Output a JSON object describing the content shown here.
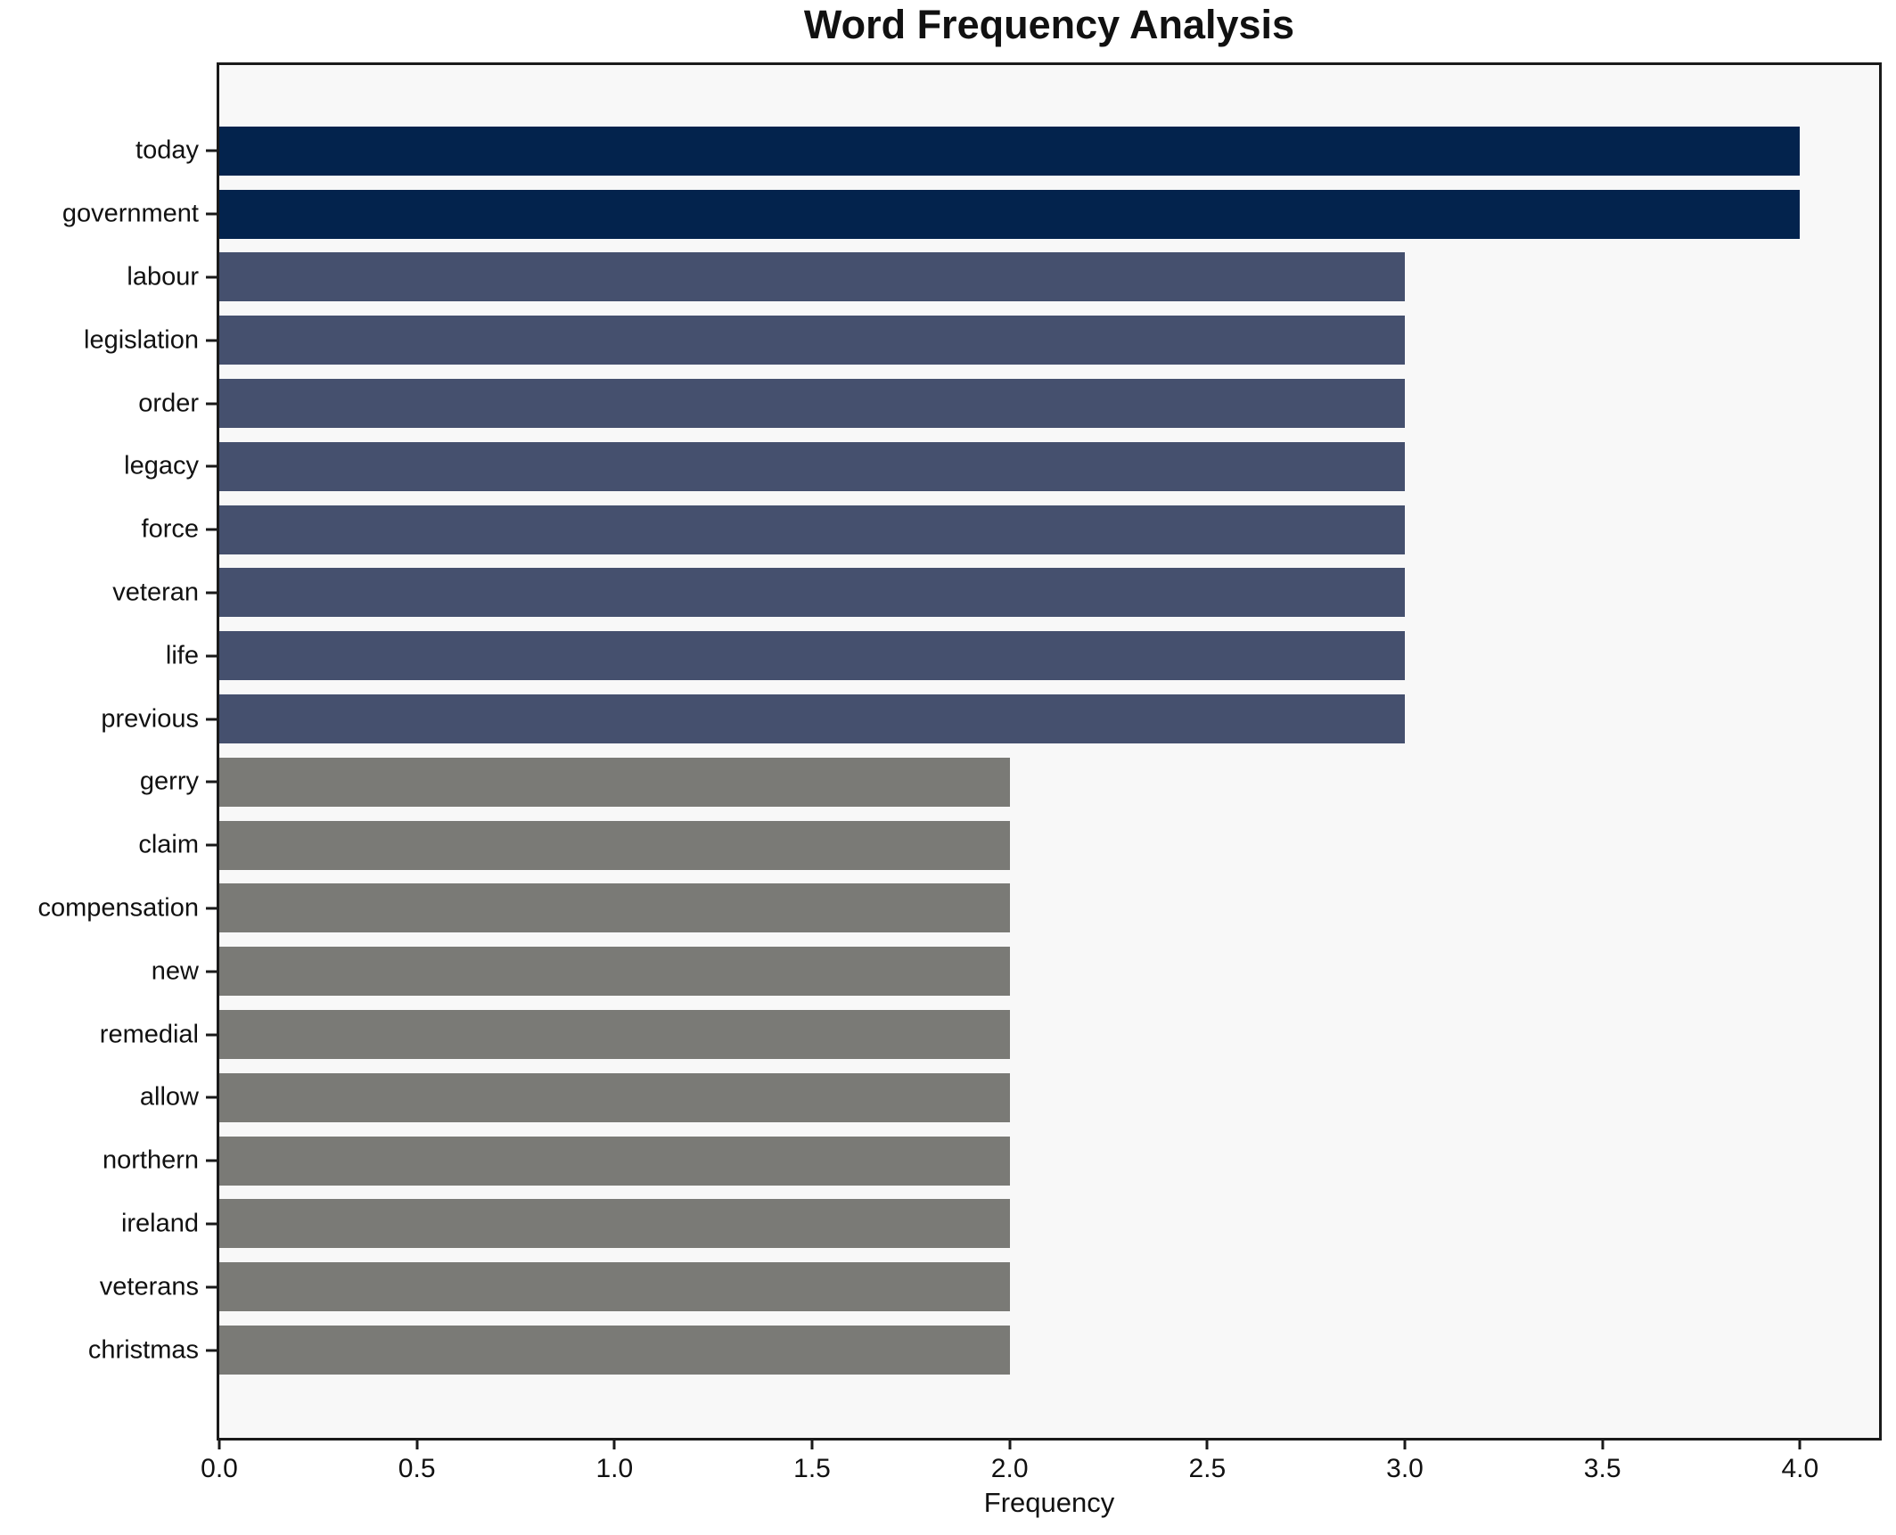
{
  "chart_data": {
    "type": "bar",
    "orientation": "horizontal",
    "title": "Word Frequency Analysis",
    "xlabel": "Frequency",
    "ylabel": "",
    "xlim": [
      0,
      4.2
    ],
    "grid": false,
    "legend": "none",
    "xticks": [
      {
        "value": 0.0,
        "label": "0.0"
      },
      {
        "value": 0.5,
        "label": "0.5"
      },
      {
        "value": 1.0,
        "label": "1.0"
      },
      {
        "value": 1.5,
        "label": "1.5"
      },
      {
        "value": 2.0,
        "label": "2.0"
      },
      {
        "value": 2.5,
        "label": "2.5"
      },
      {
        "value": 3.0,
        "label": "3.0"
      },
      {
        "value": 3.5,
        "label": "3.5"
      },
      {
        "value": 4.0,
        "label": "4.0"
      }
    ],
    "categories": [
      "today",
      "government",
      "labour",
      "legislation",
      "order",
      "legacy",
      "force",
      "veteran",
      "life",
      "previous",
      "gerry",
      "claim",
      "compensation",
      "new",
      "remedial",
      "allow",
      "northern",
      "ireland",
      "veterans",
      "christmas"
    ],
    "values": [
      4,
      4,
      3,
      3,
      3,
      3,
      3,
      3,
      3,
      3,
      2,
      2,
      2,
      2,
      2,
      2,
      2,
      2,
      2,
      2
    ],
    "bar_colors": [
      "#03234d",
      "#03234d",
      "#45506e",
      "#45506e",
      "#45506e",
      "#45506e",
      "#45506e",
      "#45506e",
      "#45506e",
      "#45506e",
      "#7a7a76",
      "#7a7a76",
      "#7a7a76",
      "#7a7a76",
      "#7a7a76",
      "#7a7a76",
      "#7a7a76",
      "#7a7a76",
      "#7a7a76",
      "#7a7a76"
    ],
    "colors": {
      "frequency_4": "#03234d",
      "frequency_3": "#45506e",
      "frequency_2": "#7a7a76",
      "plot_background": "#f8f8f8",
      "figure_background": "#ffffff",
      "spine": "#1a1a1a",
      "text": "#111111"
    }
  }
}
